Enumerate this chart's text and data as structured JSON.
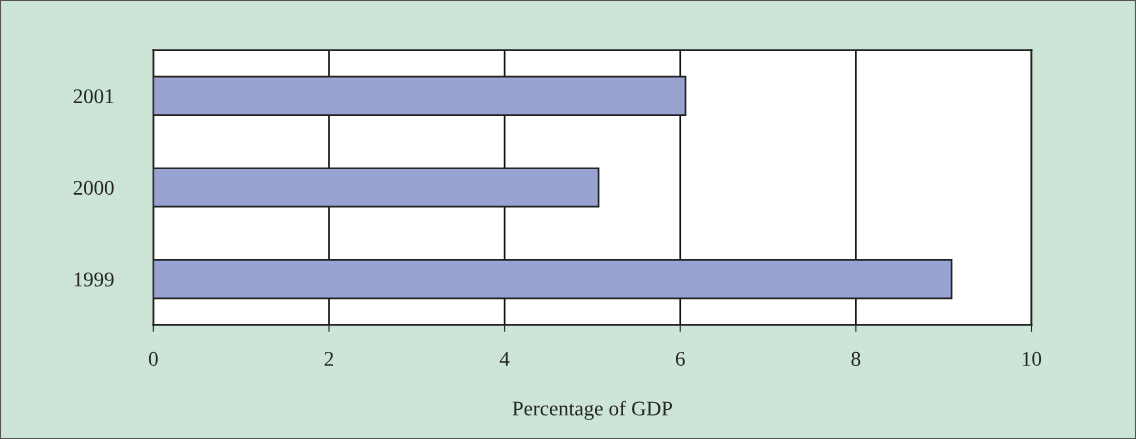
{
  "chart_data": {
    "type": "bar",
    "orientation": "horizontal",
    "xlabel": "Percentage of GDP",
    "categories": [
      "2001",
      "2000",
      "1999"
    ],
    "values": [
      6.06,
      5.07,
      9.09
    ],
    "color": "#99a3d1",
    "xlim": [
      0,
      10
    ],
    "xticks": [
      0,
      2,
      4,
      6,
      8,
      10
    ],
    "grid": "x"
  }
}
